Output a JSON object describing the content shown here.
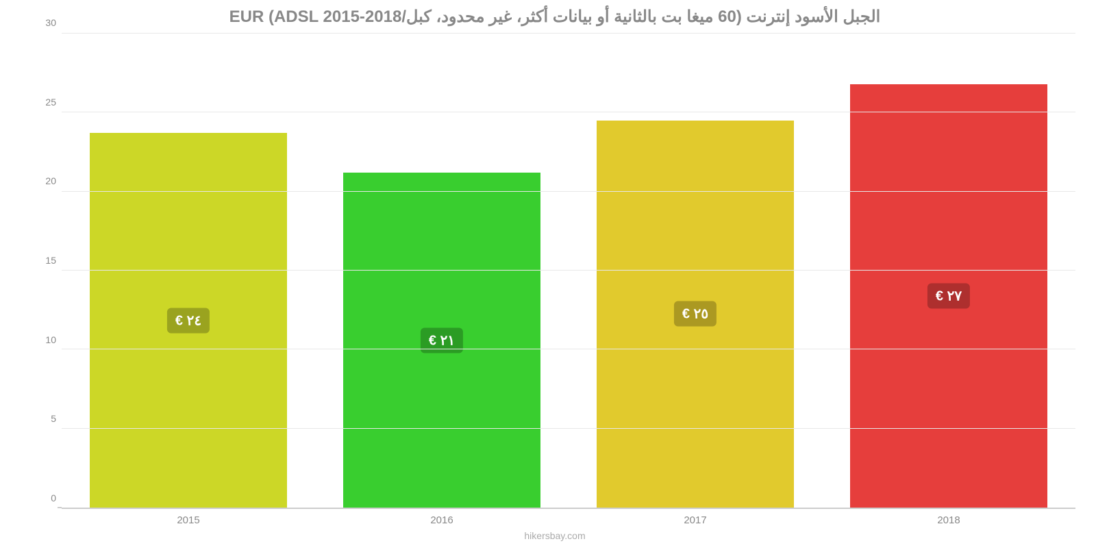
{
  "chart": {
    "type": "bar",
    "title": "الجبل الأسود إنترنت (60 ميغا بت بالثانية أو بيانات أكثر، غير محدود، كبل/EUR (ADSL 2015-2018",
    "title_color": "#888888",
    "title_fontsize": 24,
    "background_color": "#ffffff",
    "grid_color": "#e8e8e8",
    "axis_color": "#cccccc",
    "tick_color": "#888888",
    "tick_fontsize": 14,
    "ylim": [
      0,
      30
    ],
    "yticks": [
      0,
      5,
      10,
      15,
      20,
      25,
      30
    ],
    "categories": [
      "2015",
      "2016",
      "2017",
      "2018"
    ],
    "values": [
      23.7,
      21.2,
      24.5,
      26.8
    ],
    "bar_colors": [
      "#ccd727",
      "#39ce2f",
      "#e1ca2d",
      "#e63e3c"
    ],
    "bar_labels": [
      "٢٤ €",
      "٢١ €",
      "٢٥ €",
      "٢٧ €"
    ],
    "bar_label_bg": [
      "#9aa31f",
      "#2b9c24",
      "#ab9922",
      "#ae2f2e"
    ],
    "bar_label_color": "#ffffff",
    "bar_label_fontsize": 20,
    "bar_width": 0.78,
    "footer": "hikersbay.com",
    "footer_color": "#aaaaaa"
  }
}
